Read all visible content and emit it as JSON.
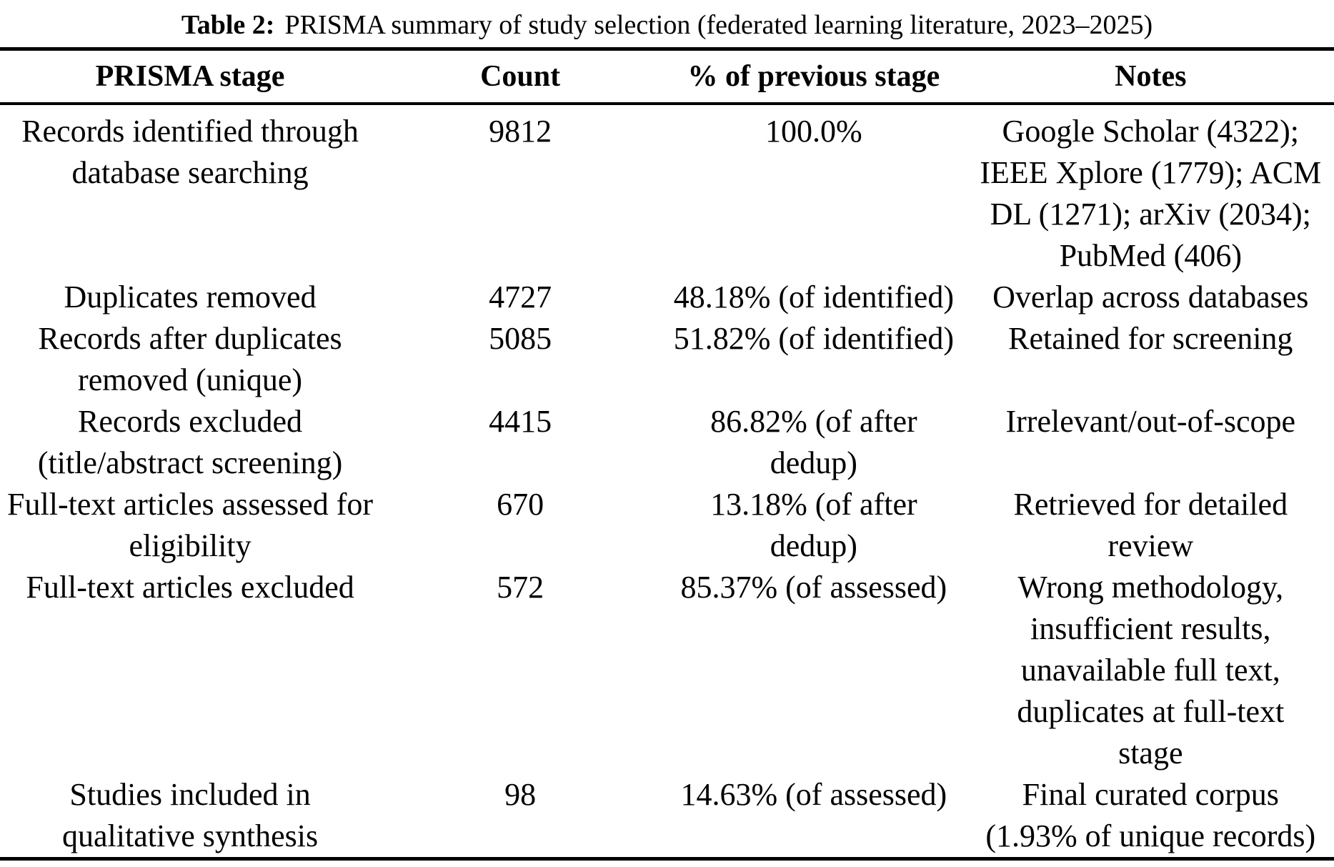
{
  "caption": {
    "label": "Table 2:",
    "text": "PRISMA summary of study selection (federated learning literature, 2023–2025)"
  },
  "table": {
    "columns": [
      "PRISMA stage",
      "Count",
      "% of previous stage",
      "Notes"
    ],
    "rows": [
      {
        "stage": [
          "Records identified through",
          "database searching"
        ],
        "count": "9812",
        "pct": "100.0%",
        "notes": [
          "Google Scholar (4322);",
          "IEEE Xplore (1779); ACM",
          "DL (1271); arXiv (2034);",
          "PubMed (406)"
        ]
      },
      {
        "stage": "Duplicates removed",
        "count": "4727",
        "pct": "48.18% (of identified)",
        "notes": "Overlap across databases"
      },
      {
        "stage": [
          "Records after duplicates",
          "removed (unique)"
        ],
        "count": "5085",
        "pct": "51.82% (of identified)",
        "notes": "Retained for screening"
      },
      {
        "stage": [
          "Records excluded",
          "(title/abstract screening)"
        ],
        "count": "4415",
        "pct": [
          "86.82% (of after",
          "dedup)"
        ],
        "notes": "Irrelevant/out-of-scope"
      },
      {
        "stage": [
          "Full-text articles assessed for",
          "eligibility"
        ],
        "count": "670",
        "pct": "13.18% (of after dedup)",
        "notes": [
          "Retrieved for detailed",
          "review"
        ]
      },
      {
        "stage": "Full-text articles excluded",
        "count": "572",
        "pct": "85.37% (of assessed)",
        "notes": [
          "Wrong methodology,",
          "insufficient results,",
          "unavailable full text,",
          "duplicates at full-text",
          "stage"
        ]
      },
      {
        "stage": [
          "Studies included in",
          "qualitative synthesis"
        ],
        "count": "98",
        "pct": "14.63% (of assessed)",
        "notes": [
          "Final curated corpus",
          "(1.93% of unique records)"
        ]
      }
    ]
  },
  "colors": {
    "text": "#000000",
    "background": "#ffffff",
    "rule": "#000000"
  }
}
